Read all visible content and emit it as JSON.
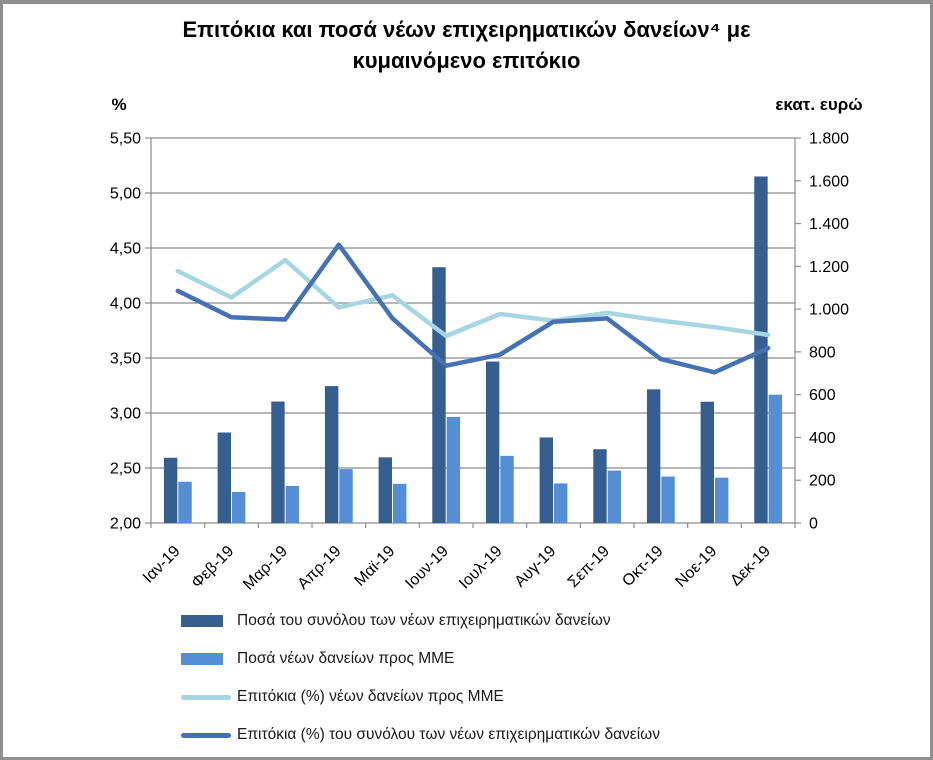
{
  "title": "Επιτόκια και ποσά νέων επιχειρηματικών δανείων⁴ με κυμαινόμενο επιτόκιο",
  "left_axis_unit": "%",
  "right_axis_unit": "εκατ. ευρώ",
  "chart_data": {
    "type": "combo-bar-line",
    "title": "Επιτόκια και ποσά νέων επιχειρηματικών δανείων⁴ με κυμαινόμενο επιτόκιο",
    "categories": [
      "Ιαν-19",
      "Φεβ-19",
      "Μαρ-19",
      "Απρ-19",
      "Μαϊ-19",
      "Ιουν-19",
      "Ιουλ-19",
      "Αυγ-19",
      "Σεπ-19",
      "Οκτ-19",
      "Νοε-19",
      "Δεκ-19"
    ],
    "left_axis": {
      "label": "%",
      "min": 2.0,
      "max": 5.5,
      "tick_values": [
        5.5,
        5.0,
        4.5,
        4.0,
        3.5,
        3.0,
        2.5,
        2.0
      ],
      "tick_labels": [
        "5,50",
        "5,00",
        "4,50",
        "4,00",
        "3,50",
        "3,00",
        "2,50",
        "2,00"
      ]
    },
    "right_axis": {
      "label": "εκατ. ευρώ",
      "min": 0,
      "max": 1800,
      "tick_values": [
        1800,
        1600,
        1400,
        1200,
        1000,
        800,
        600,
        400,
        200,
        0
      ],
      "tick_labels": [
        "1.800",
        "1.600",
        "1.400",
        "1.200",
        "1.000",
        "800",
        "600",
        "400",
        "200",
        "0"
      ]
    },
    "series": [
      {
        "name": "Ποσά του συνόλου των νέων επιχειρηματικών δανείων",
        "type": "bar",
        "axis": "right",
        "color": "#365f91",
        "values": [
          305,
          423,
          568,
          640,
          307,
          1196,
          755,
          400,
          345,
          625,
          567,
          1620
        ]
      },
      {
        "name": "Ποσά νέων δανείων προς ΜΜΕ",
        "type": "bar",
        "axis": "right",
        "color": "#558ed5",
        "values": [
          193,
          145,
          173,
          252,
          183,
          496,
          314,
          185,
          245,
          217,
          212,
          600
        ]
      },
      {
        "name": "Επιτόκια (%) νέων δανείων προς ΜΜΕ",
        "type": "line",
        "axis": "left",
        "color": "#a6d6e3",
        "values": [
          4.29,
          4.05,
          4.39,
          3.96,
          4.07,
          3.7,
          3.9,
          3.84,
          3.91,
          3.84,
          3.78,
          3.71
        ]
      },
      {
        "name": "Επιτόκια (%) του συνόλου των νέων επιχειρηματικών δανείων",
        "type": "line",
        "axis": "left",
        "color": "#4472b4",
        "values": [
          4.11,
          3.87,
          3.85,
          4.53,
          3.86,
          3.43,
          3.53,
          3.83,
          3.86,
          3.49,
          3.37,
          3.59
        ]
      }
    ],
    "grid_color": "#8c8c8c",
    "grid": true,
    "legend_position": "bottom-left"
  }
}
